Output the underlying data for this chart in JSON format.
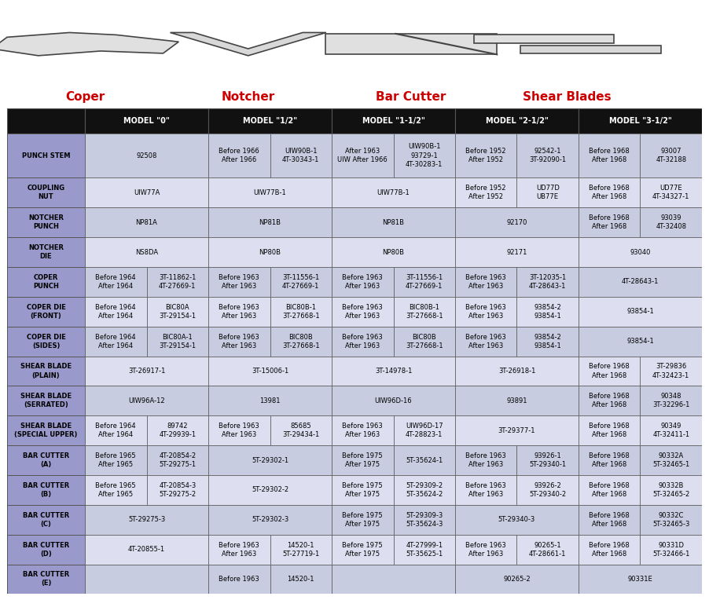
{
  "image_labels": [
    "Coper",
    "Notcher",
    "Bar Cutter",
    "Shear Blades"
  ],
  "model_headers": [
    "MODEL \"0\"",
    "MODEL \"1/2\"",
    "MODEL \"1-1/2\"",
    "MODEL \"2-1/2\"",
    "MODEL \"3-1/2\""
  ],
  "bg_header": "#111111",
  "bg_row_label": "#9999cc",
  "bg_light": "#c8cce0",
  "bg_dark": "#dddff0",
  "border_color": "#777799",
  "rows": [
    {
      "label": "PUNCH STEM",
      "cells": [
        {
          "span": 2,
          "parts": [
            "92508"
          ]
        },
        {
          "span": 1,
          "parts": [
            "Before 1966\nAfter 1966"
          ]
        },
        {
          "span": 1,
          "parts": [
            "UIW90B-1\n4T-30343-1"
          ]
        },
        {
          "span": 1,
          "parts": [
            "After 1963\nUIW After 1966"
          ]
        },
        {
          "span": 1,
          "parts": [
            "UIW90B-1\n93729-1\n4T-30283-1"
          ]
        },
        {
          "span": 1,
          "parts": [
            "Before 1952\nAfter 1952"
          ]
        },
        {
          "span": 1,
          "parts": [
            "92542-1\n3T-92090-1"
          ]
        },
        {
          "span": 1,
          "parts": [
            "Before 1968\nAfter 1968"
          ]
        },
        {
          "span": 1,
          "parts": [
            "93007\n4T-32188"
          ]
        }
      ]
    },
    {
      "label": "COUPLING\nNUT",
      "cells": [
        {
          "span": 2,
          "parts": [
            "UIW77A"
          ]
        },
        {
          "span": 2,
          "parts": [
            "UIW77B-1"
          ]
        },
        {
          "span": 2,
          "parts": [
            "UIW77B-1"
          ]
        },
        {
          "span": 1,
          "parts": [
            "Before 1952\nAfter 1952"
          ]
        },
        {
          "span": 1,
          "parts": [
            "UD77D\nUB77E"
          ]
        },
        {
          "span": 1,
          "parts": [
            "Before 1968\nAfter 1968"
          ]
        },
        {
          "span": 1,
          "parts": [
            "UD77E\n4T-34327-1"
          ]
        }
      ]
    },
    {
      "label": "NOTCHER\nPUNCH",
      "cells": [
        {
          "span": 2,
          "parts": [
            "NP81A"
          ]
        },
        {
          "span": 2,
          "parts": [
            "NP81B"
          ]
        },
        {
          "span": 2,
          "parts": [
            "NP81B"
          ]
        },
        {
          "span": 2,
          "parts": [
            "92170"
          ]
        },
        {
          "span": 1,
          "parts": [
            "Before 1968\nAfter 1968"
          ]
        },
        {
          "span": 1,
          "parts": [
            "93039\n4T-32408"
          ]
        }
      ]
    },
    {
      "label": "NOTCHER\nDIE",
      "cells": [
        {
          "span": 2,
          "parts": [
            "NS8DA"
          ]
        },
        {
          "span": 2,
          "parts": [
            "NP80B"
          ]
        },
        {
          "span": 2,
          "parts": [
            "NP80B"
          ]
        },
        {
          "span": 2,
          "parts": [
            "92171"
          ]
        },
        {
          "span": 2,
          "parts": [
            "93040"
          ]
        }
      ]
    },
    {
      "label": "COPER\nPUNCH",
      "cells": [
        {
          "span": 1,
          "parts": [
            "Before 1964\nAfter 1964"
          ]
        },
        {
          "span": 1,
          "parts": [
            "3T-11862-1\n4T-27669-1"
          ]
        },
        {
          "span": 1,
          "parts": [
            "Before 1963\nAfter 1963"
          ]
        },
        {
          "span": 1,
          "parts": [
            "3T-11556-1\n4T-27669-1"
          ]
        },
        {
          "span": 1,
          "parts": [
            "Before 1963\nAfter 1963"
          ]
        },
        {
          "span": 1,
          "parts": [
            "3T-11556-1\n4T-27669-1"
          ]
        },
        {
          "span": 1,
          "parts": [
            "Before 1963\nAfter 1963"
          ]
        },
        {
          "span": 1,
          "parts": [
            "3T-12035-1\n4T-28643-1"
          ]
        },
        {
          "span": 2,
          "parts": [
            "4T-28643-1"
          ]
        }
      ]
    },
    {
      "label": "COPER DIE\n(FRONT)",
      "cells": [
        {
          "span": 1,
          "parts": [
            "Before 1964\nAfter 1964"
          ]
        },
        {
          "span": 1,
          "parts": [
            "BIC80A\n3T-29154-1"
          ]
        },
        {
          "span": 1,
          "parts": [
            "Before 1963\nAfter 1963"
          ]
        },
        {
          "span": 1,
          "parts": [
            "BIC80B-1\n3T-27668-1"
          ]
        },
        {
          "span": 1,
          "parts": [
            "Before 1963\nAfter 1963"
          ]
        },
        {
          "span": 1,
          "parts": [
            "BIC80B-1\n3T-27668-1"
          ]
        },
        {
          "span": 1,
          "parts": [
            "Before 1963\nAfter 1963"
          ]
        },
        {
          "span": 1,
          "parts": [
            "93854-2\n93854-1"
          ]
        },
        {
          "span": 2,
          "parts": [
            "93854-1"
          ]
        }
      ]
    },
    {
      "label": "COPER DIE\n(SIDES)",
      "cells": [
        {
          "span": 1,
          "parts": [
            "Before 1964\nAfter 1964"
          ]
        },
        {
          "span": 1,
          "parts": [
            "BIC80A-1\n3T-29154-1"
          ]
        },
        {
          "span": 1,
          "parts": [
            "Before 1963\nAfter 1963"
          ]
        },
        {
          "span": 1,
          "parts": [
            "BIC80B\n3T-27668-1"
          ]
        },
        {
          "span": 1,
          "parts": [
            "Before 1963\nAfter 1963"
          ]
        },
        {
          "span": 1,
          "parts": [
            "BIC80B\n3T-27668-1"
          ]
        },
        {
          "span": 1,
          "parts": [
            "Before 1963\nAfter 1963"
          ]
        },
        {
          "span": 1,
          "parts": [
            "93854-2\n93854-1"
          ]
        },
        {
          "span": 2,
          "parts": [
            "93854-1"
          ]
        }
      ]
    },
    {
      "label": "SHEAR BLADE\n(PLAIN)",
      "cells": [
        {
          "span": 2,
          "parts": [
            "3T-26917-1"
          ]
        },
        {
          "span": 2,
          "parts": [
            "3T-15006-1"
          ]
        },
        {
          "span": 2,
          "parts": [
            "3T-14978-1"
          ]
        },
        {
          "span": 2,
          "parts": [
            "3T-26918-1"
          ]
        },
        {
          "span": 1,
          "parts": [
            "Before 1968\nAfter 1968"
          ]
        },
        {
          "span": 1,
          "parts": [
            "3T-29836\n4T-32423-1"
          ]
        }
      ]
    },
    {
      "label": "SHEAR BLADE\n(SERRATED)",
      "cells": [
        {
          "span": 2,
          "parts": [
            "UIW96A-12"
          ]
        },
        {
          "span": 2,
          "parts": [
            "13981"
          ]
        },
        {
          "span": 2,
          "parts": [
            "UIW96D-16"
          ]
        },
        {
          "span": 2,
          "parts": [
            "93891"
          ]
        },
        {
          "span": 1,
          "parts": [
            "Before 1968\nAfter 1968"
          ]
        },
        {
          "span": 1,
          "parts": [
            "90348\n3T-32296-1"
          ]
        }
      ]
    },
    {
      "label": "SHEAR BLADE\n(SPECIAL UPPER)",
      "cells": [
        {
          "span": 1,
          "parts": [
            "Before 1964\nAfter 1964"
          ]
        },
        {
          "span": 1,
          "parts": [
            "89742\n4T-29939-1"
          ]
        },
        {
          "span": 1,
          "parts": [
            "Before 1963\nAfter 1963"
          ]
        },
        {
          "span": 1,
          "parts": [
            "85685\n3T-29434-1"
          ]
        },
        {
          "span": 1,
          "parts": [
            "Before 1963\nAfter 1963"
          ]
        },
        {
          "span": 1,
          "parts": [
            "UIW96D-17\n4T-28823-1"
          ]
        },
        {
          "span": 2,
          "parts": [
            "3T-29377-1"
          ]
        },
        {
          "span": 1,
          "parts": [
            "Before 1968\nAfter 1968"
          ]
        },
        {
          "span": 1,
          "parts": [
            "90349\n4T-32411-1"
          ]
        }
      ]
    },
    {
      "label": "BAR CUTTER\n(A)",
      "cells": [
        {
          "span": 1,
          "parts": [
            "Before 1965\nAfter 1965"
          ]
        },
        {
          "span": 1,
          "parts": [
            "4T-20854-2\n5T-29275-1"
          ]
        },
        {
          "span": 2,
          "parts": [
            "5T-29302-1"
          ]
        },
        {
          "span": 1,
          "parts": [
            "Before 1975\nAfter 1975"
          ]
        },
        {
          "span": 1,
          "parts": [
            "5T-35624-1"
          ]
        },
        {
          "span": 1,
          "parts": [
            "Before 1963\nAfter 1963"
          ]
        },
        {
          "span": 1,
          "parts": [
            "93926-1\n5T-29340-1"
          ]
        },
        {
          "span": 1,
          "parts": [
            "Before 1968\nAfter 1968"
          ]
        },
        {
          "span": 1,
          "parts": [
            "90332A\n5T-32465-1"
          ]
        }
      ]
    },
    {
      "label": "BAR CUTTER\n(B)",
      "cells": [
        {
          "span": 1,
          "parts": [
            "Before 1965\nAfter 1965"
          ]
        },
        {
          "span": 1,
          "parts": [
            "4T-20854-3\n5T-29275-2"
          ]
        },
        {
          "span": 2,
          "parts": [
            "5T-29302-2"
          ]
        },
        {
          "span": 1,
          "parts": [
            "Before 1975\nAfter 1975"
          ]
        },
        {
          "span": 1,
          "parts": [
            "5T-29309-2\n5T-35624-2"
          ]
        },
        {
          "span": 1,
          "parts": [
            "Before 1963\nAfter 1963"
          ]
        },
        {
          "span": 1,
          "parts": [
            "93926-2\n5T-29340-2"
          ]
        },
        {
          "span": 1,
          "parts": [
            "Before 1968\nAfter 1968"
          ]
        },
        {
          "span": 1,
          "parts": [
            "90332B\n5T-32465-2"
          ]
        }
      ]
    },
    {
      "label": "BAR CUTTER\n(C)",
      "cells": [
        {
          "span": 2,
          "parts": [
            "5T-29275-3"
          ]
        },
        {
          "span": 2,
          "parts": [
            "5T-29302-3"
          ]
        },
        {
          "span": 1,
          "parts": [
            "Before 1975\nAfter 1975"
          ]
        },
        {
          "span": 1,
          "parts": [
            "5T-29309-3\n5T-35624-3"
          ]
        },
        {
          "span": 2,
          "parts": [
            "5T-29340-3"
          ]
        },
        {
          "span": 1,
          "parts": [
            "Before 1968\nAfter 1968"
          ]
        },
        {
          "span": 1,
          "parts": [
            "90332C\n5T-32465-3"
          ]
        }
      ]
    },
    {
      "label": "BAR CUTTER\n(D)",
      "cells": [
        {
          "span": 2,
          "parts": [
            "4T-20855-1"
          ]
        },
        {
          "span": 1,
          "parts": [
            "Before 1963\nAfter 1963"
          ]
        },
        {
          "span": 1,
          "parts": [
            "14520-1\n5T-27719-1"
          ]
        },
        {
          "span": 1,
          "parts": [
            "Before 1975\nAfter 1975"
          ]
        },
        {
          "span": 1,
          "parts": [
            "4T-27999-1\n5T-35625-1"
          ]
        },
        {
          "span": 1,
          "parts": [
            "Before 1963\nAfter 1963"
          ]
        },
        {
          "span": 1,
          "parts": [
            "90265-1\n4T-28661-1"
          ]
        },
        {
          "span": 1,
          "parts": [
            "Before 1968\nAfter 1968"
          ]
        },
        {
          "span": 1,
          "parts": [
            "90331D\n5T-32466-1"
          ]
        }
      ]
    },
    {
      "label": "BAR CUTTER\n(E)",
      "cells": [
        {
          "span": 2,
          "parts": [
            ""
          ]
        },
        {
          "span": 1,
          "parts": [
            "Before 1963"
          ]
        },
        {
          "span": 1,
          "parts": [
            "14520-1"
          ]
        },
        {
          "span": 2,
          "parts": [
            ""
          ]
        },
        {
          "span": 2,
          "parts": [
            "90265-2"
          ]
        },
        {
          "span": 2,
          "parts": [
            "90331E"
          ]
        }
      ]
    }
  ]
}
